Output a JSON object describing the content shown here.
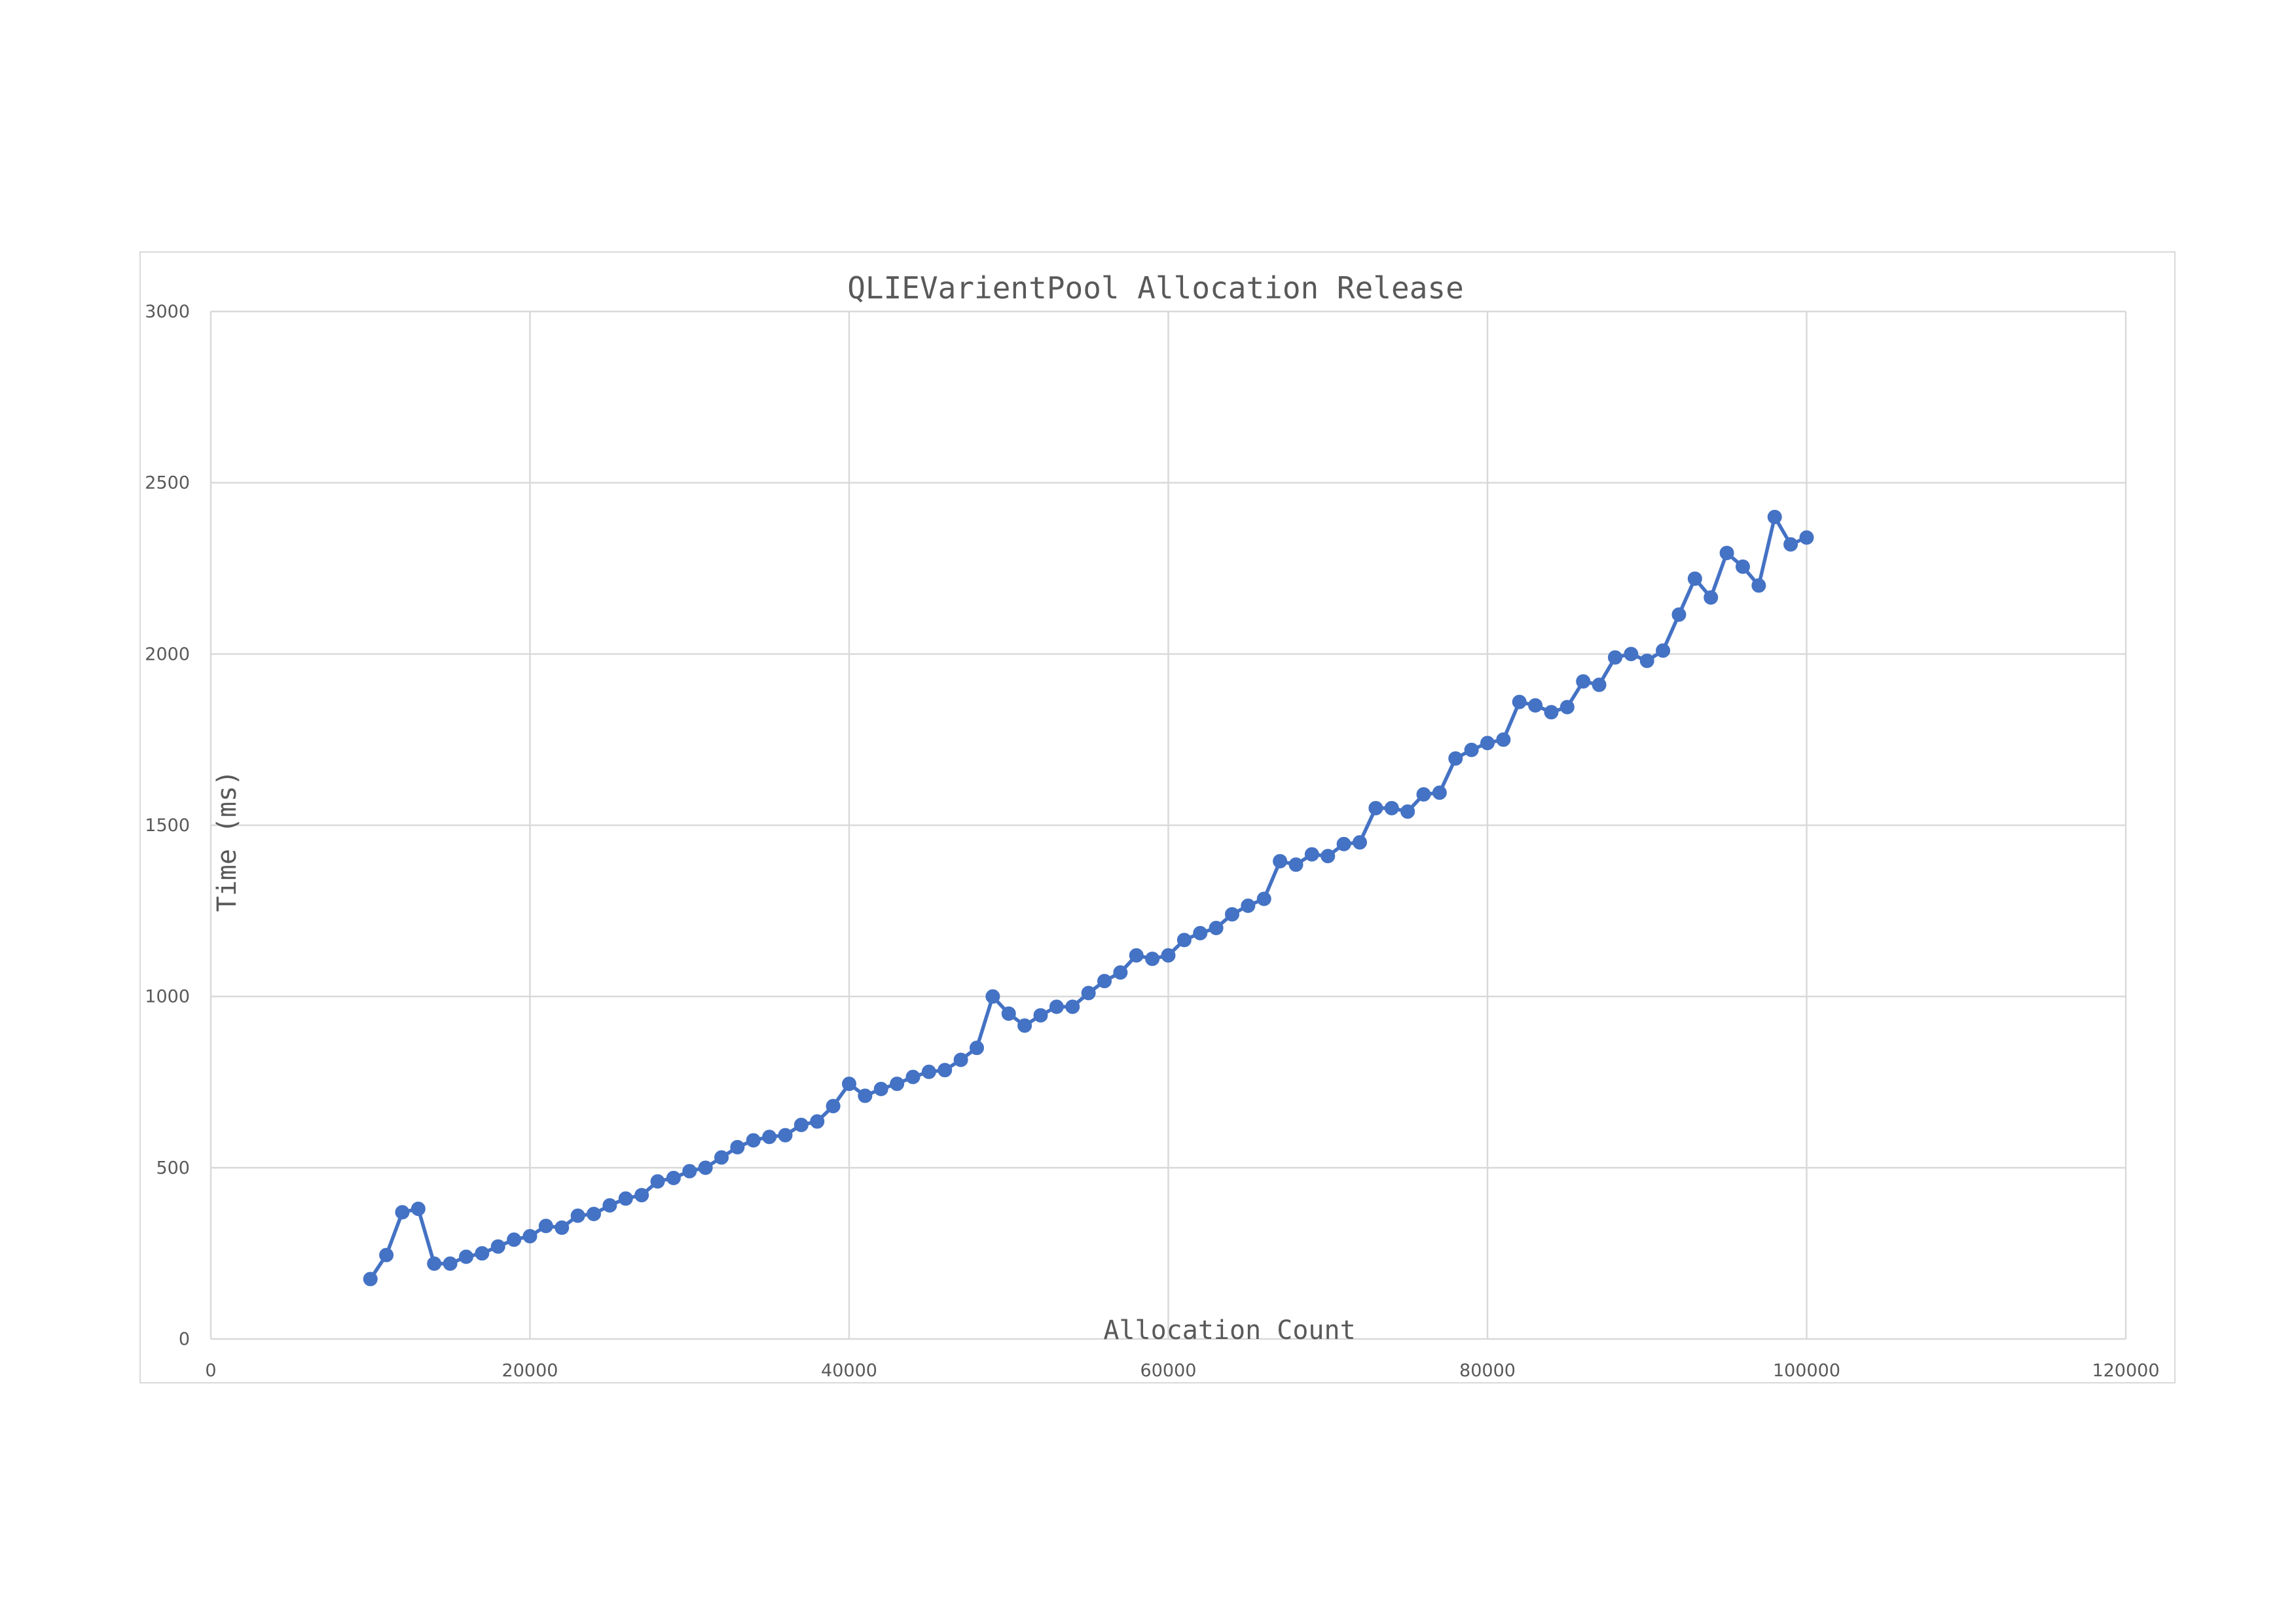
{
  "chart_data": {
    "type": "line",
    "title": "QLIEVarientPool Allocation Release",
    "xlabel": "Allocation Count",
    "ylabel": "Time (ms)",
    "xlim": [
      0,
      120000
    ],
    "ylim": [
      0,
      3000
    ],
    "x_ticks": [
      0,
      20000,
      40000,
      60000,
      80000,
      100000,
      120000
    ],
    "y_ticks": [
      0,
      500,
      1000,
      1500,
      2000,
      2500,
      3000
    ],
    "grid": true,
    "legend": "none",
    "series_color": "#4472c4",
    "series": [
      {
        "name": "Time (ms)",
        "x": [
          10000,
          11000,
          12000,
          13000,
          14000,
          15000,
          16000,
          17000,
          18000,
          19000,
          20000,
          21000,
          22000,
          23000,
          24000,
          25000,
          26000,
          27000,
          28000,
          29000,
          30000,
          31000,
          32000,
          33000,
          34000,
          35000,
          36000,
          37000,
          38000,
          39000,
          40000,
          41000,
          42000,
          43000,
          44000,
          45000,
          46000,
          47000,
          48000,
          49000,
          50000,
          51000,
          52000,
          53000,
          54000,
          55000,
          56000,
          57000,
          58000,
          59000,
          60000,
          61000,
          62000,
          63000,
          64000,
          65000,
          66000,
          67000,
          68000,
          69000,
          70000,
          71000,
          72000,
          73000,
          74000,
          75000,
          76000,
          77000,
          78000,
          79000,
          80000,
          81000,
          82000,
          83000,
          84000,
          85000,
          86000,
          87000,
          88000,
          89000,
          90000,
          91000,
          92000,
          93000,
          94000,
          95000,
          96000,
          97000,
          98000,
          99000,
          100000
        ],
        "values": [
          175,
          245,
          370,
          380,
          220,
          220,
          240,
          250,
          270,
          290,
          300,
          330,
          325,
          360,
          365,
          390,
          410,
          420,
          460,
          470,
          490,
          500,
          530,
          560,
          580,
          590,
          595,
          625,
          635,
          680,
          745,
          710,
          730,
          745,
          765,
          780,
          785,
          815,
          850,
          1000,
          950,
          915,
          945,
          970,
          970,
          1010,
          1045,
          1070,
          1120,
          1110,
          1120,
          1165,
          1185,
          1200,
          1240,
          1265,
          1285,
          1395,
          1385,
          1415,
          1410,
          1445,
          1450,
          1550,
          1550,
          1540,
          1590,
          1595,
          1695,
          1720,
          1740,
          1750,
          1860,
          1850,
          1830,
          1845,
          1920,
          1910,
          1990,
          2000,
          1980,
          2010,
          2115,
          2220,
          2165,
          2295,
          2255,
          2200,
          2400,
          2320,
          2340
        ]
      }
    ]
  }
}
